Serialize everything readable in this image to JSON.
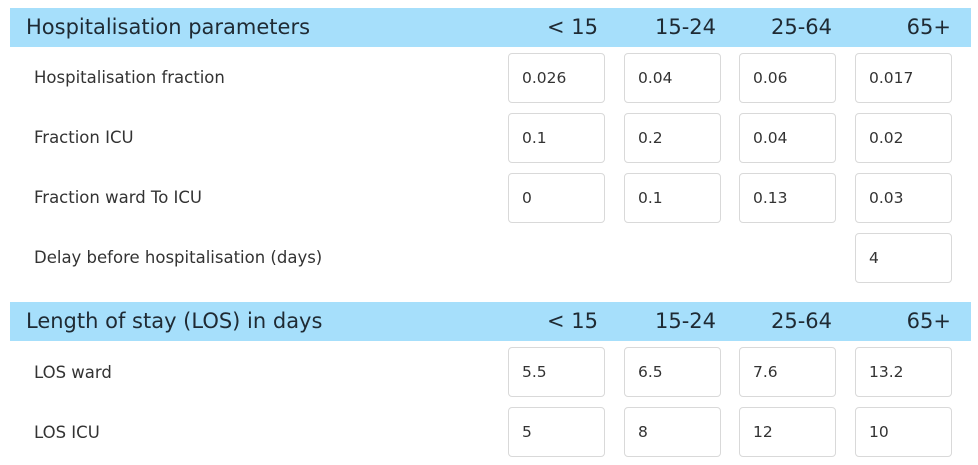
{
  "sections": [
    {
      "title": "Hospitalisation parameters",
      "columns": [
        "< 15",
        "15-24",
        "25-64",
        "65+"
      ],
      "rows": [
        {
          "label": "Hospitalisation fraction",
          "values": [
            "0.026",
            "0.04",
            "0.06",
            "0.017"
          ]
        },
        {
          "label": "Fraction ICU",
          "values": [
            "0.1",
            "0.2",
            "0.04",
            "0.02"
          ]
        },
        {
          "label": "Fraction ward To ICU",
          "values": [
            "0",
            "0.1",
            "0.13",
            "0.03"
          ]
        },
        {
          "label": "Delay before hospitalisation (days)",
          "values": [
            "4"
          ]
        }
      ]
    },
    {
      "title": "Length of stay (LOS) in days",
      "columns": [
        "< 15",
        "15-24",
        "25-64",
        "65+"
      ],
      "rows": [
        {
          "label": "LOS ward",
          "values": [
            "5.5",
            "6.5",
            "7.6",
            "13.2"
          ]
        },
        {
          "label": "LOS ICU",
          "values": [
            "5",
            "8",
            "12",
            "10"
          ]
        }
      ]
    }
  ]
}
